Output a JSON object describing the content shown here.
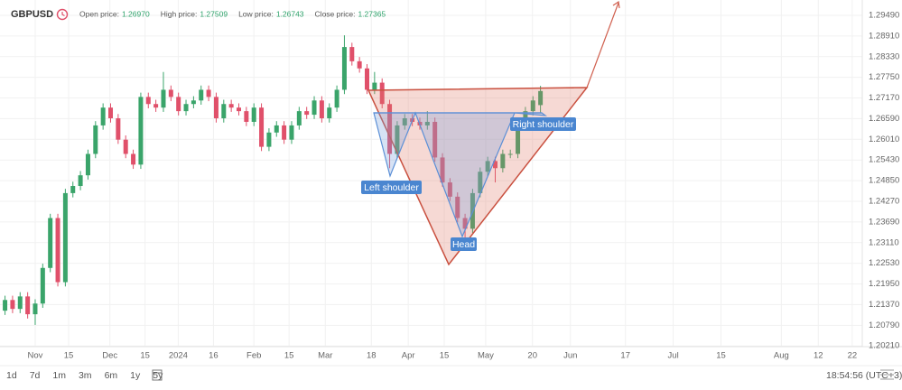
{
  "header": {
    "symbol": "GBPUSD",
    "stats": [
      {
        "label": "Open price:",
        "value": "1.26970"
      },
      {
        "label": "High price:",
        "value": "1.27509"
      },
      {
        "label": "Low price:",
        "value": "1.26743"
      },
      {
        "label": "Close price:",
        "value": "1.27365"
      }
    ]
  },
  "chart_data": {
    "type": "candlestick",
    "annotations": [
      "Left shoulder",
      "Head",
      "Right shoulder"
    ],
    "up_color": "#3aa46a",
    "down_color": "#e0506a",
    "grid": true,
    "x": [
      -12,
      -9,
      -6,
      -3,
      0,
      3,
      6,
      9,
      12,
      15,
      18,
      21,
      24,
      27,
      30,
      33,
      36,
      39,
      42,
      45,
      48,
      51,
      54,
      57,
      60,
      63,
      66,
      69,
      72,
      75,
      78,
      81,
      84,
      87,
      90,
      93,
      96,
      99,
      102,
      105,
      108,
      111,
      114,
      117,
      120,
      123,
      126,
      129,
      132,
      135,
      138,
      141,
      144,
      147,
      150,
      153,
      156,
      159,
      162,
      165,
      168,
      171,
      174,
      177,
      180,
      183,
      186,
      189,
      192,
      195,
      198,
      201
    ],
    "open": [
      1.212,
      1.215,
      1.2125,
      1.216,
      1.211,
      1.214,
      1.224,
      1.238,
      1.22,
      1.245,
      1.247,
      1.25,
      1.256,
      1.264,
      1.269,
      1.266,
      1.26,
      1.256,
      1.253,
      1.272,
      1.27,
      1.269,
      1.274,
      1.272,
      1.268,
      1.27,
      1.271,
      1.274,
      1.272,
      1.266,
      1.27,
      1.269,
      1.268,
      1.265,
      1.269,
      1.258,
      1.262,
      1.264,
      1.26,
      1.264,
      1.268,
      1.267,
      1.271,
      1.266,
      1.269,
      1.274,
      1.286,
      1.282,
      1.28,
      1.274,
      1.276,
      1.27,
      1.256,
      1.264,
      1.266,
      1.265,
      1.264,
      1.265,
      1.255,
      1.248,
      1.244,
      1.238,
      1.235,
      1.245,
      1.251,
      1.254,
      1.252,
      1.256,
      1.256,
      1.264,
      1.268,
      1.2697
    ],
    "high": [
      1.2162,
      1.2162,
      1.2172,
      1.2172,
      1.2152,
      1.2252,
      1.2392,
      1.2392,
      1.2462,
      1.2482,
      1.2512,
      1.2572,
      1.2652,
      1.2702,
      1.2702,
      1.2672,
      1.2612,
      1.2572,
      1.2732,
      1.2732,
      1.2712,
      1.279,
      1.2752,
      1.2732,
      1.2712,
      1.2722,
      1.2752,
      1.2752,
      1.2732,
      1.2712,
      1.2712,
      1.2702,
      1.2692,
      1.2702,
      1.2702,
      1.2632,
      1.2652,
      1.2652,
      1.2652,
      1.2692,
      1.2692,
      1.2722,
      1.2722,
      1.2702,
      1.2752,
      1.2893,
      1.2872,
      1.2832,
      1.2812,
      1.279,
      1.2772,
      1.2712,
      1.2652,
      1.2672,
      1.2672,
      1.2662,
      1.268,
      1.2662,
      1.2562,
      1.2492,
      1.2452,
      1.2392,
      1.2462,
      1.2522,
      1.2552,
      1.2552,
      1.2572,
      1.2572,
      1.2652,
      1.2692,
      1.2722,
      1.27509
    ],
    "low": [
      1.2108,
      1.2113,
      1.2113,
      1.2098,
      1.208,
      1.2128,
      1.2228,
      1.2188,
      1.2188,
      1.2438,
      1.2458,
      1.2488,
      1.2548,
      1.2628,
      1.2648,
      1.2588,
      1.2548,
      1.2518,
      1.2518,
      1.2688,
      1.2678,
      1.2678,
      1.2708,
      1.2668,
      1.2668,
      1.2688,
      1.2698,
      1.2708,
      1.2648,
      1.2648,
      1.2678,
      1.2668,
      1.2638,
      1.2638,
      1.2568,
      1.2568,
      1.2608,
      1.2588,
      1.2588,
      1.2628,
      1.2658,
      1.2658,
      1.2648,
      1.2648,
      1.2678,
      1.2728,
      1.2808,
      1.2788,
      1.2728,
      1.2728,
      1.2688,
      1.252,
      1.2548,
      1.2628,
      1.2638,
      1.2628,
      1.2628,
      1.2538,
      1.2468,
      1.2428,
      1.2368,
      1.232,
      1.2338,
      1.2438,
      1.2498,
      1.248,
      1.2508,
      1.2548,
      1.2548,
      1.2628,
      1.2668,
      1.26743
    ],
    "close": [
      1.215,
      1.2125,
      1.216,
      1.211,
      1.214,
      1.224,
      1.238,
      1.22,
      1.245,
      1.247,
      1.25,
      1.256,
      1.264,
      1.269,
      1.266,
      1.26,
      1.256,
      1.253,
      1.272,
      1.27,
      1.269,
      1.274,
      1.272,
      1.268,
      1.27,
      1.271,
      1.274,
      1.272,
      1.266,
      1.27,
      1.269,
      1.268,
      1.265,
      1.269,
      1.258,
      1.262,
      1.264,
      1.26,
      1.264,
      1.268,
      1.267,
      1.271,
      1.266,
      1.269,
      1.274,
      1.286,
      1.282,
      1.28,
      1.274,
      1.276,
      1.27,
      1.256,
      1.264,
      1.266,
      1.265,
      1.264,
      1.265,
      1.255,
      1.248,
      1.244,
      1.238,
      1.235,
      1.245,
      1.251,
      1.254,
      1.252,
      1.256,
      1.256,
      1.264,
      1.268,
      1.271,
      1.27365
    ],
    "xlim": [
      -14,
      329
    ],
    "xticks": [
      {
        "value": 0,
        "label": "Nov"
      },
      {
        "value": 13.3,
        "label": "15"
      },
      {
        "value": 29.7,
        "label": "Dec"
      },
      {
        "value": 43.7,
        "label": "15"
      },
      {
        "value": 56.9,
        "label": "2024"
      },
      {
        "value": 70.9,
        "label": "16"
      },
      {
        "value": 87,
        "label": "Feb"
      },
      {
        "value": 101,
        "label": "15"
      },
      {
        "value": 115.4,
        "label": "Mar"
      },
      {
        "value": 133.7,
        "label": "18"
      },
      {
        "value": 148.4,
        "label": "Apr"
      },
      {
        "value": 162.7,
        "label": "15"
      },
      {
        "value": 179.2,
        "label": "May"
      },
      {
        "value": 197.8,
        "label": "20"
      },
      {
        "value": 212.9,
        "label": "Jun"
      },
      {
        "value": 234.8,
        "label": "17"
      },
      {
        "value": 253.8,
        "label": "Jul"
      },
      {
        "value": 272.8,
        "label": "15"
      },
      {
        "value": 296.8,
        "label": "Aug"
      },
      {
        "value": 311.5,
        "label": "12"
      },
      {
        "value": 325,
        "label": "22"
      }
    ],
    "ylim": [
      1.2019,
      1.2992
    ],
    "yticks": [
      {
        "value": 1.2949,
        "label": "1.29490"
      },
      {
        "value": 1.2891,
        "label": "1.28910"
      },
      {
        "value": 1.2833,
        "label": "1.28330"
      },
      {
        "value": 1.2775,
        "label": "1.27750"
      },
      {
        "value": 1.2717,
        "label": "1.27170"
      },
      {
        "value": 1.2659,
        "label": "1.26590"
      },
      {
        "value": 1.2601,
        "label": "1.26010"
      },
      {
        "value": 1.2543,
        "label": "1.25430"
      },
      {
        "value": 1.2485,
        "label": "1.24850"
      },
      {
        "value": 1.2427,
        "label": "1.24270"
      },
      {
        "value": 1.2369,
        "label": "1.23690"
      },
      {
        "value": 1.2311,
        "label": "1.23110"
      },
      {
        "value": 1.2253,
        "label": "1.22530"
      },
      {
        "value": 1.2195,
        "label": "1.21950"
      },
      {
        "value": 1.2137,
        "label": "1.21370"
      },
      {
        "value": 1.2079,
        "label": "1.20790"
      },
      {
        "value": 1.2021,
        "label": "1.20210"
      }
    ]
  },
  "footer": {
    "ranges": [
      "1d",
      "7d",
      "1m",
      "3m",
      "6m",
      "1y",
      "5y"
    ],
    "time": "18:54:56 (UTC+3)"
  }
}
